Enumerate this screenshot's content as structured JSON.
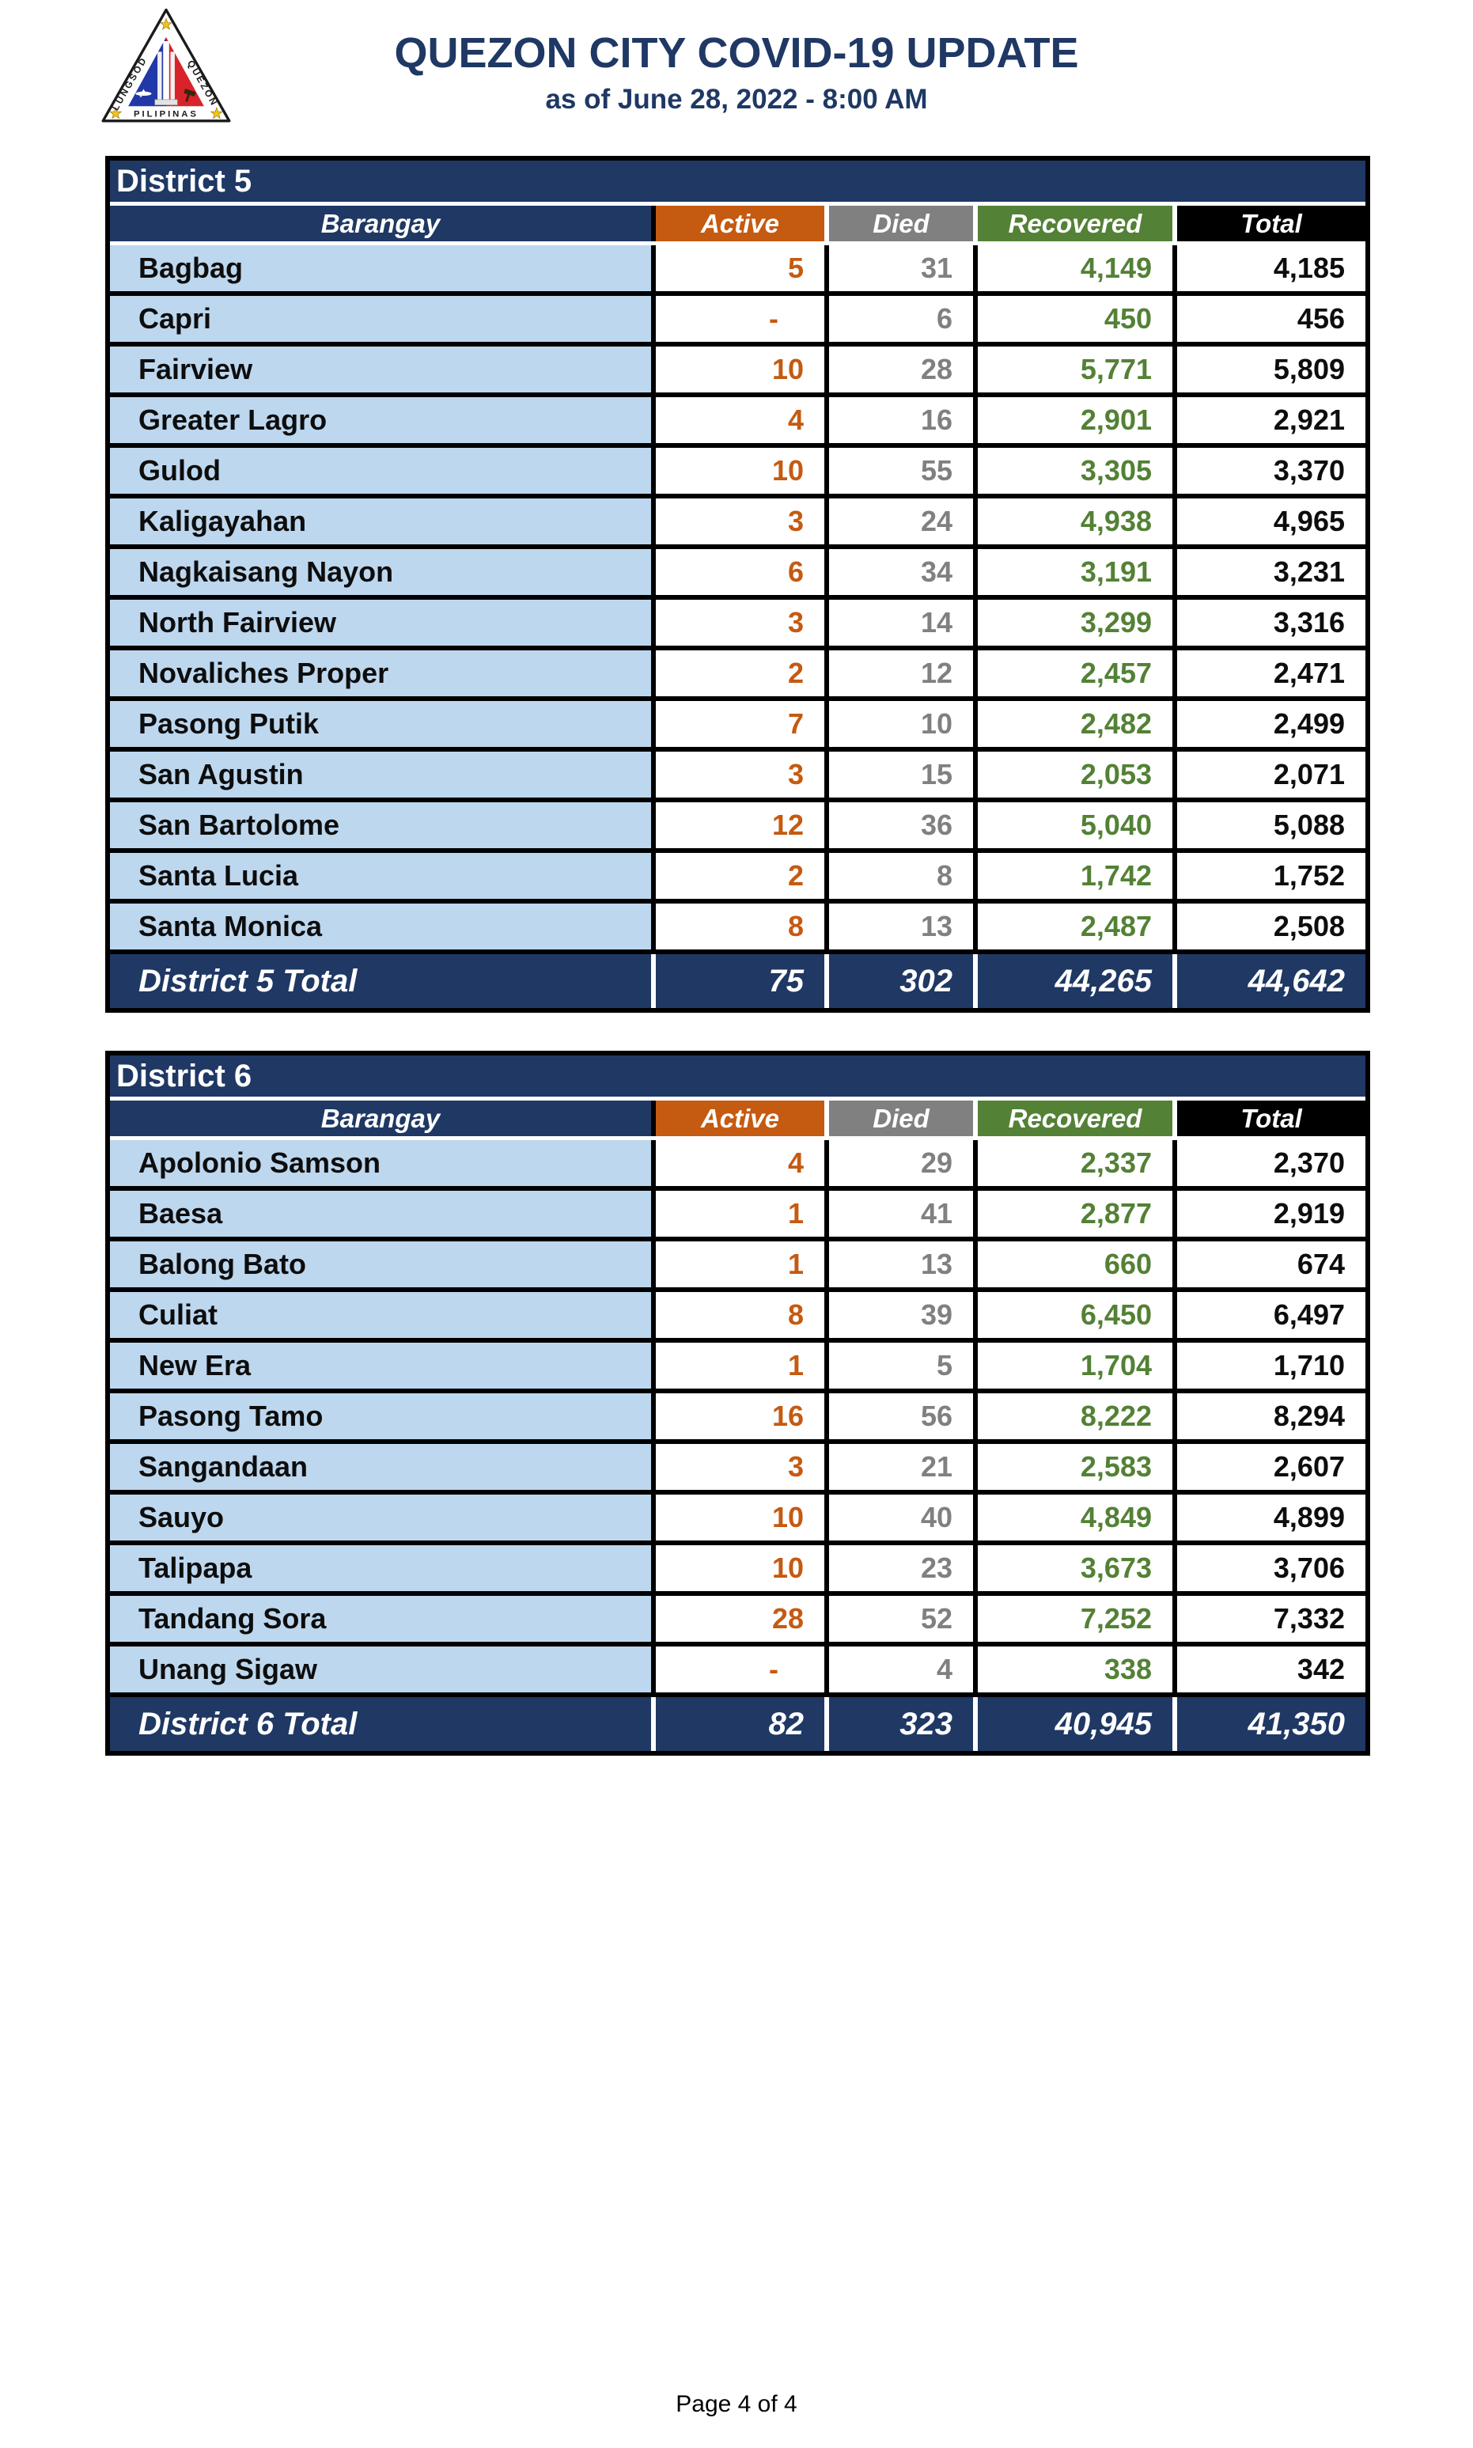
{
  "header": {
    "title": "QUEZON CITY COVID-19 UPDATE",
    "subtitle": "as of June 28, 2022 - 8:00 AM",
    "logo": {
      "left_text": "LUNGSOD",
      "right_text": "QUEZON",
      "bottom_text": "PILIPINAS"
    }
  },
  "columns": [
    "Barangay",
    "Active",
    "Died",
    "Recovered",
    "Total"
  ],
  "colors": {
    "navy": "#1F3864",
    "orange": "#C55A11",
    "gray": "#808080",
    "green": "#538135",
    "row_label_bg": "#BDD7EE",
    "logo_blue": "#2138A8",
    "logo_red": "#D8232A",
    "logo_star": "#F2C31B"
  },
  "tables": [
    {
      "district_label": "District 5",
      "total_label": "District 5 Total",
      "rows": [
        {
          "barangay": "Bagbag",
          "active": "5",
          "died": "31",
          "recovered": "4,149",
          "total": "4,185"
        },
        {
          "barangay": "Capri",
          "active": "-",
          "died": "6",
          "recovered": "450",
          "total": "456"
        },
        {
          "barangay": "Fairview",
          "active": "10",
          "died": "28",
          "recovered": "5,771",
          "total": "5,809"
        },
        {
          "barangay": "Greater Lagro",
          "active": "4",
          "died": "16",
          "recovered": "2,901",
          "total": "2,921"
        },
        {
          "barangay": "Gulod",
          "active": "10",
          "died": "55",
          "recovered": "3,305",
          "total": "3,370"
        },
        {
          "barangay": "Kaligayahan",
          "active": "3",
          "died": "24",
          "recovered": "4,938",
          "total": "4,965"
        },
        {
          "barangay": "Nagkaisang Nayon",
          "active": "6",
          "died": "34",
          "recovered": "3,191",
          "total": "3,231"
        },
        {
          "barangay": "North Fairview",
          "active": "3",
          "died": "14",
          "recovered": "3,299",
          "total": "3,316"
        },
        {
          "barangay": "Novaliches Proper",
          "active": "2",
          "died": "12",
          "recovered": "2,457",
          "total": "2,471"
        },
        {
          "barangay": "Pasong Putik",
          "active": "7",
          "died": "10",
          "recovered": "2,482",
          "total": "2,499"
        },
        {
          "barangay": "San Agustin",
          "active": "3",
          "died": "15",
          "recovered": "2,053",
          "total": "2,071"
        },
        {
          "barangay": "San Bartolome",
          "active": "12",
          "died": "36",
          "recovered": "5,040",
          "total": "5,088"
        },
        {
          "barangay": "Santa Lucia",
          "active": "2",
          "died": "8",
          "recovered": "1,742",
          "total": "1,752"
        },
        {
          "barangay": "Santa Monica",
          "active": "8",
          "died": "13",
          "recovered": "2,487",
          "total": "2,508"
        }
      ],
      "totals": {
        "active": "75",
        "died": "302",
        "recovered": "44,265",
        "total": "44,642"
      }
    },
    {
      "district_label": "District 6",
      "total_label": "District 6 Total",
      "rows": [
        {
          "barangay": "Apolonio Samson",
          "active": "4",
          "died": "29",
          "recovered": "2,337",
          "total": "2,370"
        },
        {
          "barangay": "Baesa",
          "active": "1",
          "died": "41",
          "recovered": "2,877",
          "total": "2,919"
        },
        {
          "barangay": "Balong Bato",
          "active": "1",
          "died": "13",
          "recovered": "660",
          "total": "674"
        },
        {
          "barangay": "Culiat",
          "active": "8",
          "died": "39",
          "recovered": "6,450",
          "total": "6,497"
        },
        {
          "barangay": "New Era",
          "active": "1",
          "died": "5",
          "recovered": "1,704",
          "total": "1,710"
        },
        {
          "barangay": "Pasong Tamo",
          "active": "16",
          "died": "56",
          "recovered": "8,222",
          "total": "8,294"
        },
        {
          "barangay": "Sangandaan",
          "active": "3",
          "died": "21",
          "recovered": "2,583",
          "total": "2,607"
        },
        {
          "barangay": "Sauyo",
          "active": "10",
          "died": "40",
          "recovered": "4,849",
          "total": "4,899"
        },
        {
          "barangay": "Talipapa",
          "active": "10",
          "died": "23",
          "recovered": "3,673",
          "total": "3,706"
        },
        {
          "barangay": "Tandang Sora",
          "active": "28",
          "died": "52",
          "recovered": "7,252",
          "total": "7,332"
        },
        {
          "barangay": "Unang Sigaw",
          "active": "-",
          "died": "4",
          "recovered": "338",
          "total": "342"
        }
      ],
      "totals": {
        "active": "82",
        "died": "323",
        "recovered": "40,945",
        "total": "41,350"
      }
    }
  ],
  "footer": {
    "page_label": "Page 4 of 4"
  }
}
